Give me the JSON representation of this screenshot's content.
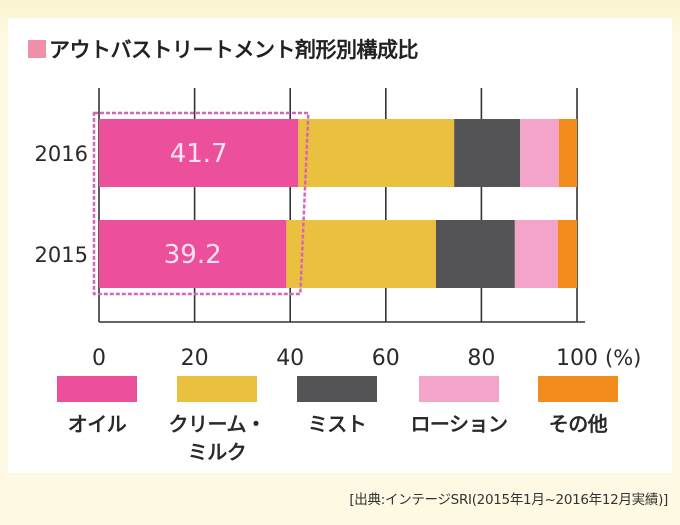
{
  "title": "アウトバストリートメント剤形別構成比",
  "source_note": "[出典:インテージSRI(2015年1月~2016年12月実績)]",
  "colors": {
    "title_swatch": "#f08fa8",
    "oil": "#ec4f9b",
    "cream_milk": "#e9c13e",
    "mist": "#545456",
    "lotion": "#f4a3c9",
    "other": "#f28c1c",
    "highlight_box": "#d766b6",
    "axis": "#333333",
    "bar_label": "#fbe2ef"
  },
  "chart_data": {
    "type": "bar",
    "orientation": "horizontal",
    "stacked": true,
    "title": "アウトバストリートメント剤形別構成比",
    "xlabel": "(%)",
    "ylabel": "",
    "xlim": [
      0,
      100
    ],
    "x_ticks": [
      "0",
      "20",
      "40",
      "60",
      "80",
      "100"
    ],
    "x_tick_values": [
      0,
      20,
      40,
      60,
      80,
      100
    ],
    "x_unit": "(%)",
    "grid": true,
    "legend_position": "bottom",
    "values_note": "Only oil values are labeled; other segments estimated from gridlines",
    "categories": [
      "2016",
      "2015"
    ],
    "series": [
      {
        "name": "オイル",
        "key": "oil",
        "values": [
          41.7,
          39.2
        ],
        "labeled": true,
        "value_labels": [
          "41.7",
          "39.2"
        ]
      },
      {
        "name": "クリーム・\nミルク",
        "key": "cream_milk",
        "values": [
          32.6,
          31.3
        ],
        "labeled": false
      },
      {
        "name": "ミスト",
        "key": "mist",
        "values": [
          13.8,
          16.5
        ],
        "labeled": false
      },
      {
        "name": "ローション",
        "key": "lotion",
        "values": [
          8.1,
          9.0
        ],
        "labeled": false
      },
      {
        "name": "その他",
        "key": "other",
        "values": [
          3.8,
          4.0
        ],
        "labeled": false
      }
    ],
    "highlight": "Dashed box around the オイル segments of both years"
  },
  "legend": [
    {
      "key": "oil",
      "label_line1": "オイル",
      "label_line2": ""
    },
    {
      "key": "cream_milk",
      "label_line1": "クリーム・",
      "label_line2": "ミルク"
    },
    {
      "key": "mist",
      "label_line1": "ミスト",
      "label_line2": ""
    },
    {
      "key": "lotion",
      "label_line1": "ローション",
      "label_line2": ""
    },
    {
      "key": "other",
      "label_line1": "その他",
      "label_line2": ""
    }
  ]
}
